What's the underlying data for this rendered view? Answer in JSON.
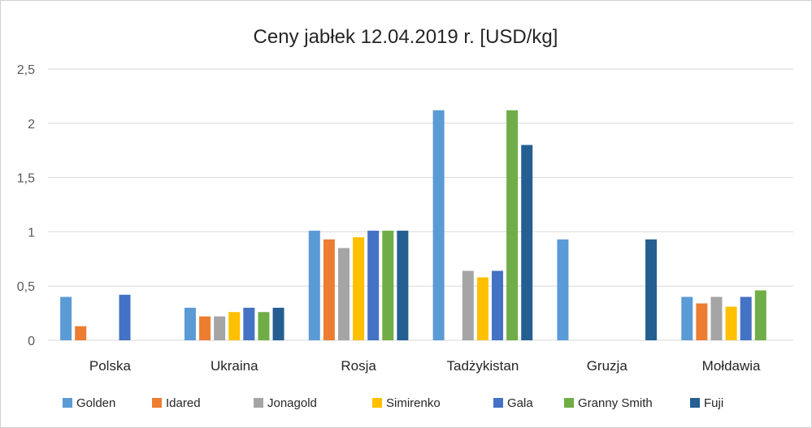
{
  "chart_data": {
    "type": "bar",
    "title": "Ceny jabłek 12.04.2019 r. [USD/kg]",
    "xlabel": "",
    "ylabel": "",
    "ylim": [
      0,
      2.5
    ],
    "yticks": [
      "0",
      "0,5",
      "1",
      "1,5",
      "2",
      "2,5"
    ],
    "ytick_values": [
      0,
      0.5,
      1,
      1.5,
      2,
      2.5
    ],
    "grid": true,
    "legend_position": "bottom",
    "categories": [
      "Polska",
      "Ukraina",
      "Rosja",
      "Tadżykistan",
      "Gruzja",
      "Mołdawia"
    ],
    "series": [
      {
        "name": "Golden",
        "color": "#5b9bd5",
        "values": [
          0.4,
          0.3,
          1.01,
          2.12,
          0.93,
          0.4
        ]
      },
      {
        "name": "Idared",
        "color": "#ed7d31",
        "values": [
          0.13,
          0.22,
          0.93,
          null,
          null,
          0.34
        ]
      },
      {
        "name": "Jonagold",
        "color": "#a5a5a5",
        "values": [
          null,
          0.22,
          0.85,
          0.64,
          null,
          0.4
        ]
      },
      {
        "name": "Simirenko",
        "color": "#ffc000",
        "values": [
          null,
          0.26,
          0.95,
          0.58,
          null,
          0.31
        ]
      },
      {
        "name": "Gala",
        "color": "#4472c4",
        "values": [
          0.42,
          0.3,
          1.01,
          0.64,
          null,
          0.4
        ]
      },
      {
        "name": "Granny Smith",
        "color": "#70ad47",
        "values": [
          null,
          0.26,
          1.01,
          2.12,
          null,
          0.46
        ]
      },
      {
        "name": "Fuji",
        "color": "#255e91",
        "values": [
          null,
          0.3,
          1.01,
          1.8,
          0.93,
          null
        ]
      }
    ]
  }
}
